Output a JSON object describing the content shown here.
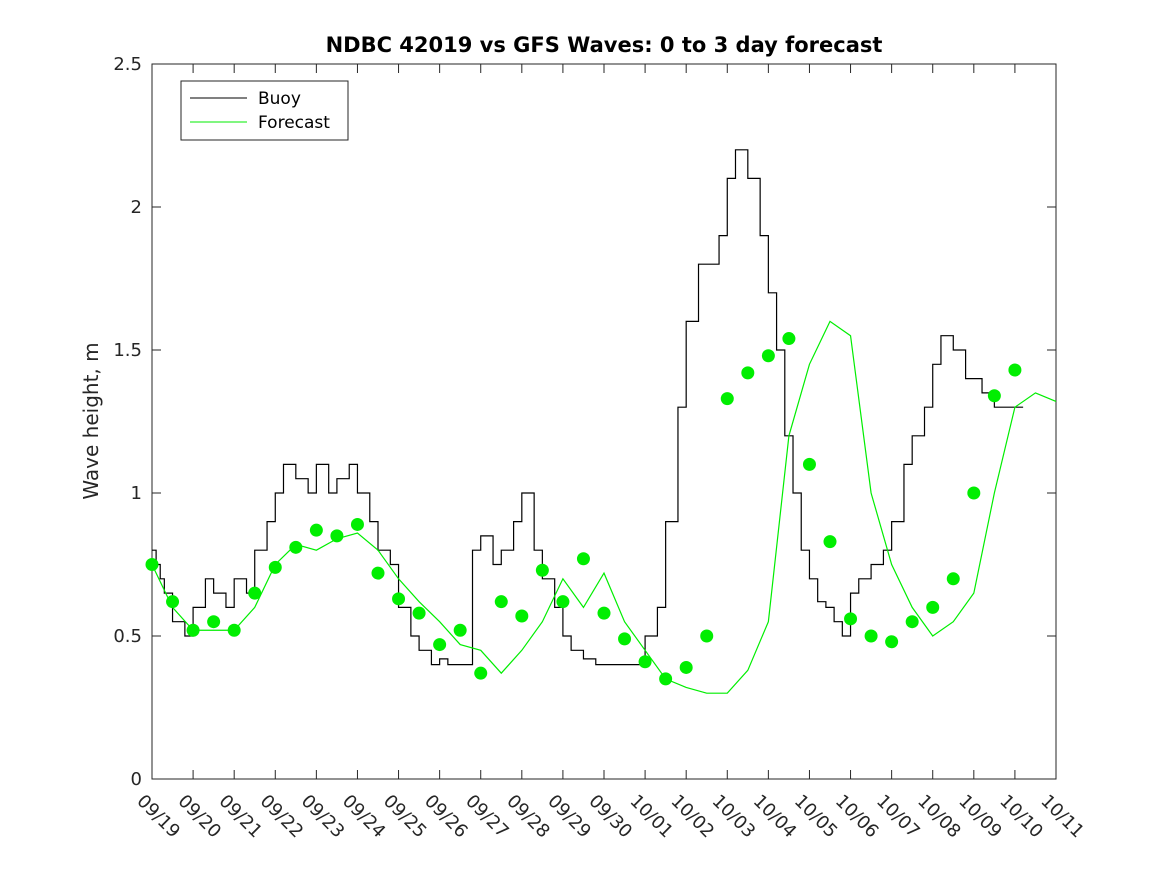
{
  "chart_data": {
    "type": "line",
    "title": "NDBC 42019 vs GFS Waves: 0 to 3 day forecast",
    "xlabel": "",
    "ylabel": "Wave height, m",
    "xlim": [
      0,
      22
    ],
    "ylim": [
      0,
      2.5
    ],
    "x_ticks": [
      "09/19",
      "09/20",
      "09/21",
      "09/22",
      "09/23",
      "09/24",
      "09/25",
      "09/26",
      "09/27",
      "09/28",
      "09/29",
      "09/30",
      "10/01",
      "10/02",
      "10/03",
      "10/04",
      "10/05",
      "10/06",
      "10/07",
      "10/08",
      "10/09",
      "10/10",
      "10/11"
    ],
    "y_ticks": [
      0,
      0.5,
      1,
      1.5,
      2,
      2.5
    ],
    "y_tick_labels": [
      "0",
      "0.5",
      "1",
      "1.5",
      "2",
      "2.5"
    ],
    "grid": false,
    "legend": {
      "position": "top-left",
      "entries": [
        "Buoy",
        "Forecast"
      ]
    },
    "colors": {
      "buoy": "#000000",
      "forecast": "#00ee00",
      "marker": "#00ee00",
      "axis": "#262626"
    },
    "series": [
      {
        "name": "Buoy",
        "x": [
          0,
          0.1,
          0.2,
          0.3,
          0.5,
          0.8,
          1.0,
          1.3,
          1.5,
          1.8,
          2.0,
          2.3,
          2.5,
          2.8,
          3.0,
          3.2,
          3.5,
          3.8,
          4.0,
          4.3,
          4.5,
          4.8,
          5.0,
          5.3,
          5.5,
          5.8,
          6.0,
          6.3,
          6.5,
          6.8,
          7.0,
          7.2,
          7.5,
          7.8,
          8.0,
          8.3,
          8.5,
          8.8,
          9.0,
          9.3,
          9.5,
          9.8,
          10.0,
          10.2,
          10.5,
          10.8,
          11.0,
          11.3,
          11.5,
          11.8,
          12.0,
          12.3,
          12.5,
          12.8,
          13.0,
          13.3,
          13.5,
          13.8,
          14.0,
          14.2,
          14.5,
          14.8,
          15.0,
          15.2,
          15.4,
          15.6,
          15.8,
          16.0,
          16.2,
          16.4,
          16.6,
          16.8,
          17.0,
          17.2,
          17.5,
          17.8,
          18.0,
          18.3,
          18.5,
          18.8,
          19.0,
          19.2,
          19.5,
          19.8,
          20.0,
          20.2,
          20.5,
          20.8,
          21.0,
          21.2
        ],
        "values": [
          0.8,
          0.75,
          0.7,
          0.65,
          0.55,
          0.5,
          0.6,
          0.7,
          0.65,
          0.6,
          0.7,
          0.65,
          0.8,
          0.9,
          1.0,
          1.1,
          1.05,
          1.0,
          1.1,
          1.0,
          1.05,
          1.1,
          1.0,
          0.9,
          0.8,
          0.75,
          0.6,
          0.5,
          0.45,
          0.4,
          0.42,
          0.4,
          0.4,
          0.8,
          0.85,
          0.75,
          0.8,
          0.9,
          1.0,
          0.8,
          0.7,
          0.6,
          0.5,
          0.45,
          0.42,
          0.4,
          0.4,
          0.4,
          0.4,
          0.4,
          0.5,
          0.6,
          0.9,
          1.3,
          1.6,
          1.8,
          1.8,
          1.9,
          2.1,
          2.2,
          2.1,
          1.9,
          1.7,
          1.5,
          1.2,
          1.0,
          0.8,
          0.7,
          0.62,
          0.6,
          0.55,
          0.5,
          0.65,
          0.7,
          0.75,
          0.8,
          0.9,
          1.1,
          1.2,
          1.3,
          1.45,
          1.55,
          1.5,
          1.4,
          1.4,
          1.35,
          1.3,
          1.3,
          1.3,
          1.3
        ]
      },
      {
        "name": "Forecast",
        "x": [
          0,
          0.5,
          1.0,
          1.5,
          2.0,
          2.5,
          3.0,
          3.5,
          4.0,
          4.5,
          5.0,
          5.5,
          6.0,
          6.5,
          7.0,
          7.5,
          8.0,
          8.5,
          9.0,
          9.5,
          10.0,
          10.5,
          11.0,
          11.5,
          12.0,
          12.5,
          13.0,
          13.5,
          14.0,
          14.5,
          15.0,
          15.5,
          16.0,
          16.5,
          17.0,
          17.5,
          18.0,
          18.5,
          19.0,
          19.5,
          20.0,
          20.5,
          21.0,
          21.5,
          22.0
        ],
        "values": [
          0.75,
          0.6,
          0.52,
          0.52,
          0.52,
          0.6,
          0.75,
          0.82,
          0.8,
          0.84,
          0.86,
          0.8,
          0.7,
          0.62,
          0.55,
          0.47,
          0.45,
          0.37,
          0.45,
          0.55,
          0.7,
          0.6,
          0.72,
          0.55,
          0.45,
          0.35,
          0.32,
          0.3,
          0.3,
          0.38,
          0.55,
          1.2,
          1.45,
          1.6,
          1.55,
          1.0,
          0.75,
          0.6,
          0.5,
          0.55,
          0.65,
          1.0,
          1.3,
          1.35,
          1.32
        ]
      }
    ],
    "markers": {
      "name": "Forecast verification points",
      "x": [
        0,
        0.5,
        1.0,
        1.5,
        2.0,
        2.5,
        3.0,
        3.5,
        4.0,
        4.5,
        5.0,
        5.5,
        6.0,
        6.5,
        7.0,
        7.5,
        8.0,
        8.5,
        9.0,
        9.5,
        10.0,
        10.5,
        11.0,
        11.5,
        12.0,
        12.5,
        13.0,
        13.5,
        14.0,
        14.5,
        15.0,
        15.5,
        16.0,
        16.5,
        17.0,
        17.5,
        18.0,
        18.5,
        19.0,
        19.5,
        20.0,
        20.5,
        21.0
      ],
      "values": [
        0.75,
        0.62,
        0.52,
        0.55,
        0.52,
        0.65,
        0.74,
        0.81,
        0.87,
        0.85,
        0.89,
        0.72,
        0.63,
        0.58,
        0.47,
        0.52,
        0.37,
        0.62,
        0.57,
        0.73,
        0.62,
        0.77,
        0.58,
        0.49,
        0.41,
        0.35,
        0.39,
        0.5,
        1.33,
        1.42,
        1.48,
        1.54,
        1.1,
        0.83,
        0.56,
        0.5,
        0.48,
        0.55,
        0.6,
        0.7,
        1.0,
        1.34,
        1.43
      ]
    }
  }
}
